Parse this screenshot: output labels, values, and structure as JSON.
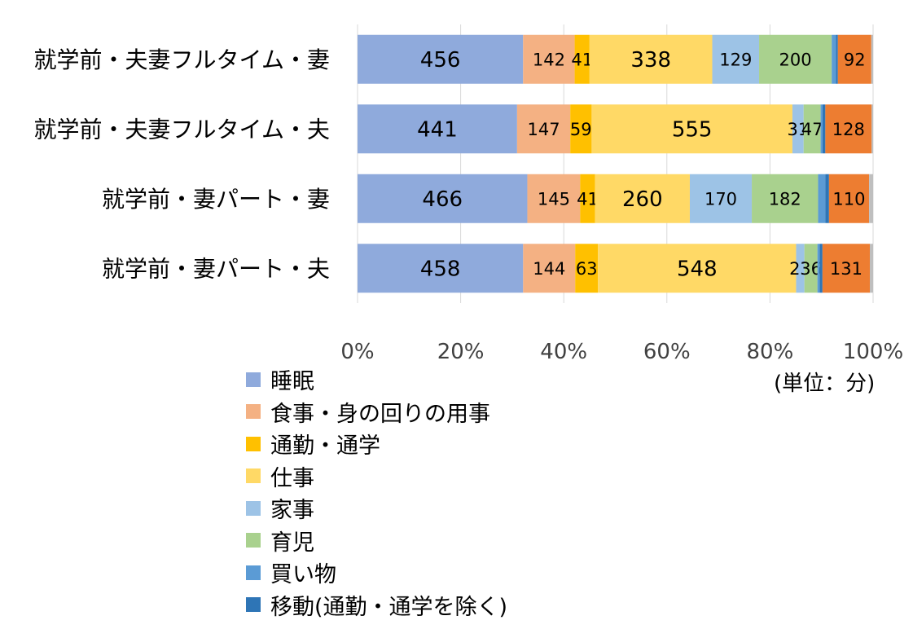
{
  "unit_label": "(単位：分)",
  "chart_data": {
    "type": "bar",
    "orientation": "horizontal",
    "stacked": "percent",
    "title": "",
    "categories": [
      "就学前・夫妻フルタイム・妻",
      "就学前・夫妻フルタイム・夫",
      "就学前・妻パート・妻",
      "就学前・妻パート・夫"
    ],
    "xticks": [
      "0%",
      "20%",
      "40%",
      "60%",
      "80%",
      "100%"
    ],
    "xlim": [
      0,
      100
    ],
    "grid": "vertical-major",
    "legend_position": "bottom-left",
    "series": [
      {
        "name": "睡眠",
        "color": "#8FAADC",
        "values": [
          456,
          441,
          466,
          458
        ],
        "labels": [
          "456",
          "441",
          "466",
          "458"
        ]
      },
      {
        "name": "食事・身の回りの用事",
        "color": "#F4B183",
        "values": [
          142,
          147,
          145,
          144
        ],
        "labels": [
          "142",
          "147",
          "145",
          "144"
        ]
      },
      {
        "name": "通勤・通学",
        "color": "#FFC000",
        "values": [
          41,
          59,
          41,
          63
        ],
        "labels": [
          "41",
          "59",
          "41",
          "63"
        ]
      },
      {
        "name": "仕事",
        "color": "#FFD966",
        "values": [
          338,
          555,
          260,
          548
        ],
        "labels": [
          "338",
          "555",
          "260",
          "548"
        ]
      },
      {
        "name": "家事",
        "color": "#9DC3E6",
        "values": [
          129,
          31,
          170,
          23
        ],
        "labels": [
          "129",
          "31",
          "170",
          "23"
        ]
      },
      {
        "name": "育児",
        "color": "#A9D18E",
        "values": [
          200,
          47,
          182,
          36
        ],
        "labels": [
          "200",
          "47",
          "182",
          "36"
        ]
      },
      {
        "name": "買い物",
        "color": "#5B9BD5",
        "values": [
          12,
          5,
          20,
          6
        ],
        "labels": [
          "",
          "",
          "",
          ""
        ]
      },
      {
        "name": "移動(通勤・通学を除く)",
        "color": "#2E75B6",
        "values": [
          5,
          8,
          10,
          8
        ],
        "labels": [
          "",
          "",
          "",
          ""
        ]
      },
      {
        "name": "",
        "color": "#ED7D31",
        "values": [
          92,
          128,
          110,
          131
        ],
        "labels": [
          "92",
          "128",
          "110",
          "131"
        ]
      },
      {
        "name": "",
        "color": "#BFBFBF",
        "values": [
          5,
          4,
          11,
          9
        ],
        "labels": [
          "",
          "",
          "",
          ""
        ]
      }
    ]
  }
}
